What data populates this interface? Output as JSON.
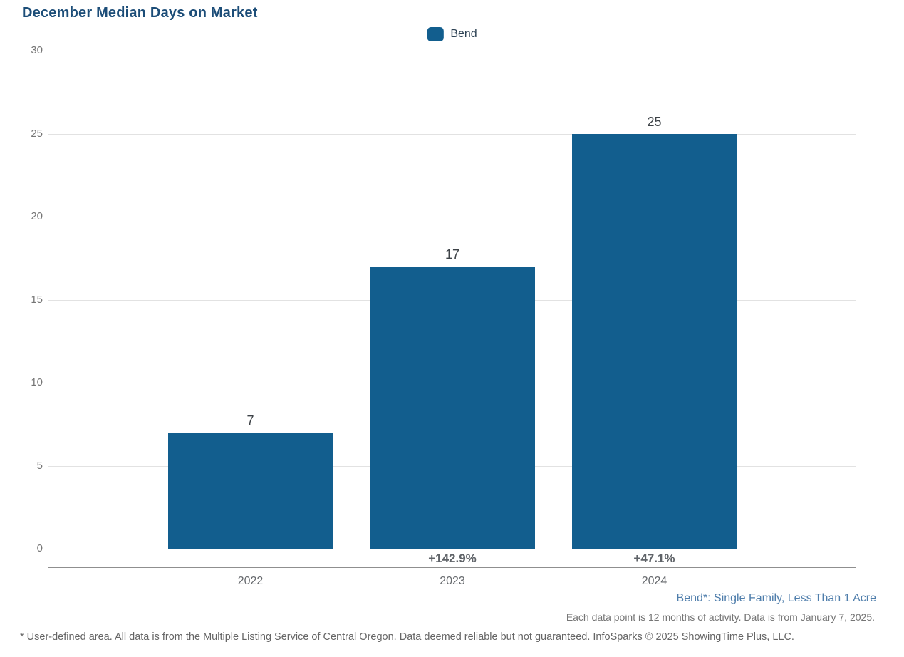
{
  "title": "December Median Days on Market",
  "legend": {
    "items": [
      {
        "label": "Bend",
        "color": "#125e8e"
      }
    ]
  },
  "chart_data": {
    "type": "bar",
    "title": "December Median Days on Market",
    "categories": [
      "2022",
      "2023",
      "2024"
    ],
    "series": [
      {
        "name": "Bend",
        "color": "#125e8e",
        "values": [
          7,
          17,
          25
        ],
        "change_labels": [
          "",
          "+142.9%",
          "+47.1%"
        ]
      }
    ],
    "xlabel": "",
    "ylabel": "",
    "ylim": [
      0,
      30
    ],
    "yticks": [
      0,
      5,
      10,
      15,
      20,
      25,
      30
    ],
    "grid": "horizontal",
    "legend_position": "top-center",
    "value_labels_shown": true
  },
  "footnotes": {
    "series_definition": "Bend*: Single Family, Less Than 1 Acre",
    "data_note": "Each data point is 12 months of activity. Data is from January 7, 2025.",
    "disclaimer": "* User-defined area. All data is from the Multiple Listing Service of Central Oregon. Data deemed reliable but not guaranteed. InfoSparks © 2025 ShowingTime Plus, LLC."
  },
  "colors": {
    "bar": "#125e8e",
    "title_text": "#1c4d78",
    "legend_text": "#2d4254",
    "axis_tick_text": "#757575",
    "x_tick_text": "#66696d",
    "value_label_text": "#3d4247",
    "change_label_text": "#5f6368",
    "footnote_blue_text": "#4e7dab",
    "footnote_gray_text": "#757575",
    "disclaimer_text": "#666666",
    "gridline": "#e2e2e2",
    "axis_line": "#8f8f8f",
    "background": "#ffffff"
  }
}
